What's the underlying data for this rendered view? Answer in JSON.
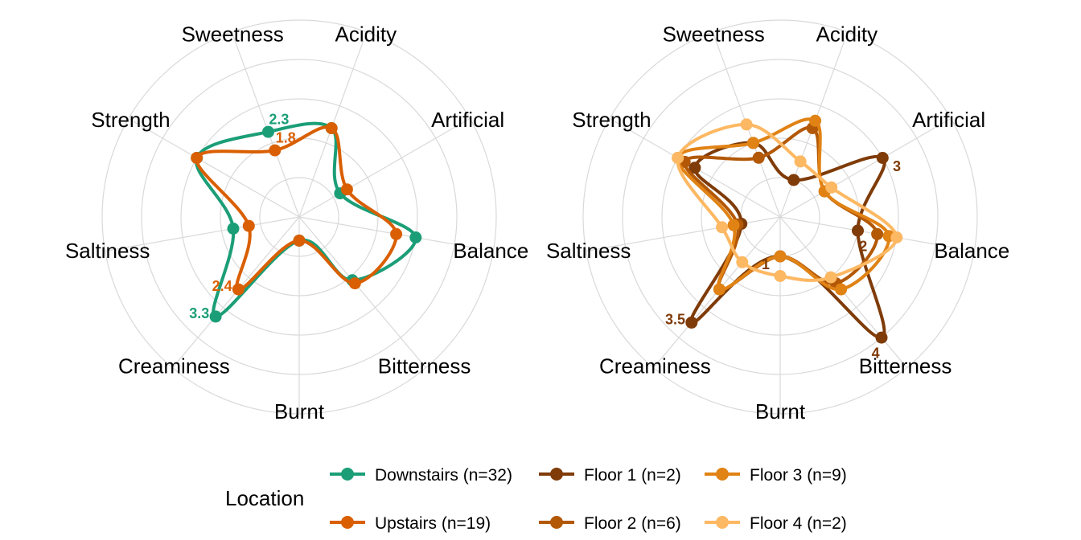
{
  "chart_data": [
    {
      "type": "radar",
      "axes": [
        "Acidity",
        "Artificial",
        "Balance",
        "Bitterness",
        "Burnt",
        "Creaminess",
        "Saltiness",
        "Strength",
        "Sweetness"
      ],
      "rlim": [
        0,
        5
      ],
      "grid": true,
      "series": [
        {
          "name": "Downstairs (n=32)",
          "color": "#1b9e77",
          "values": [
            2.4,
            1.2,
            3.0,
            2.1,
            0.6,
            3.3,
            1.7,
            3.0,
            2.3
          ]
        },
        {
          "name": "Upstairs (n=19)",
          "color": "#d95f02",
          "values": [
            2.4,
            1.4,
            2.5,
            2.2,
            0.6,
            2.4,
            1.3,
            3.0,
            1.8
          ]
        }
      ],
      "annotations": [
        {
          "text": "2.3",
          "series": "Downstairs (n=32)",
          "axis": "Sweetness"
        },
        {
          "text": "1.8",
          "series": "Upstairs (n=19)",
          "axis": "Sweetness"
        },
        {
          "text": "2.4",
          "series": "Upstairs (n=19)",
          "axis": "Creaminess"
        },
        {
          "text": "3.3",
          "series": "Downstairs (n=32)",
          "axis": "Creaminess"
        }
      ]
    },
    {
      "type": "radar",
      "axes": [
        "Acidity",
        "Artificial",
        "Balance",
        "Bitterness",
        "Burnt",
        "Creaminess",
        "Saltiness",
        "Strength",
        "Sweetness"
      ],
      "rlim": [
        0,
        5
      ],
      "grid": true,
      "series": [
        {
          "name": "Floor 1 (n=2)",
          "color": "#7f3b08",
          "values": [
            1.0,
            3.0,
            2.0,
            4.0,
            1.0,
            3.5,
            1.0,
            2.5,
            2.0
          ]
        },
        {
          "name": "Floor 2 (n=6)",
          "color": "#b35806",
          "values": [
            2.4,
            1.3,
            2.5,
            2.2,
            1.0,
            2.4,
            1.1,
            2.8,
            1.6
          ]
        },
        {
          "name": "Floor 3 (n=9)",
          "color": "#e08214",
          "values": [
            2.6,
            1.3,
            2.8,
            2.4,
            1.0,
            2.4,
            1.2,
            3.0,
            2.0
          ]
        },
        {
          "name": "Floor 4 (n=2)",
          "color": "#fdb863",
          "values": [
            1.5,
            1.5,
            3.0,
            2.0,
            1.5,
            1.5,
            1.5,
            3.0,
            2.5
          ]
        }
      ],
      "annotations": [
        {
          "text": "3",
          "series": "Floor 1 (n=2)",
          "axis": "Artificial"
        },
        {
          "text": "2",
          "series": "Floor 1 (n=2)",
          "axis": "Balance"
        },
        {
          "text": "1",
          "series": "Floor 1 (n=2)",
          "axis": "Burnt"
        },
        {
          "text": "3.5",
          "series": "Floor 1 (n=2)",
          "axis": "Creaminess"
        },
        {
          "text": "4",
          "series": "Floor 1 (n=2)",
          "axis": "Bitterness"
        }
      ]
    }
  ],
  "legend": {
    "title": "Location",
    "placement": "bottom",
    "items": [
      {
        "label": "Downstairs (n=32)",
        "color": "#1b9e77"
      },
      {
        "label": "Upstairs (n=19)",
        "color": "#d95f02"
      },
      {
        "label": "Floor 1 (n=2)",
        "color": "#7f3b08"
      },
      {
        "label": "Floor 2 (n=6)",
        "color": "#b35806"
      },
      {
        "label": "Floor 3 (n=9)",
        "color": "#e08214"
      },
      {
        "label": "Floor 4 (n=2)",
        "color": "#fdb863"
      }
    ]
  }
}
